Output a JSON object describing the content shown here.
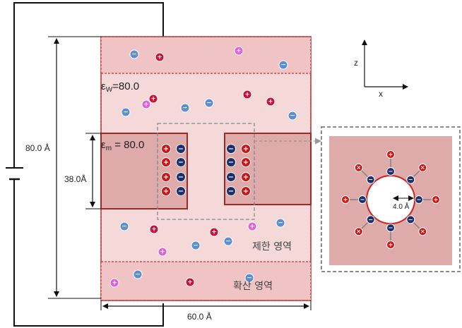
{
  "labels": {
    "eps_water_sym": "ε",
    "eps_water_sub": "W",
    "eps_water_val": "=80.0",
    "eps_mem_sym": "ε",
    "eps_mem_sub": "m",
    "eps_mem_val": " = 80.0",
    "height_total": "80.0 Å",
    "height_pore": "38.0Å",
    "width_total": "60.0 Å",
    "radius": "4.0 Å",
    "region_confined": "제한 영역",
    "region_diffusion": "확산 영역",
    "axis_z": "z",
    "axis_x": "x"
  },
  "icons": {
    "cation": "+",
    "anion": "−",
    "neutral": "×"
  },
  "colors": {
    "bath": "#f5d9d9",
    "bath_band": "#f0c4c4",
    "membrane": "#deaaaa",
    "membrane_border": "#9a2b2b",
    "dashed_red": "#d03030",
    "cation": "#c8103c",
    "anion": "#5b8fd0",
    "cation_pink": "#e060d8",
    "anion_navy": "#1e2f6e",
    "cation_red": "#cc1515"
  }
}
